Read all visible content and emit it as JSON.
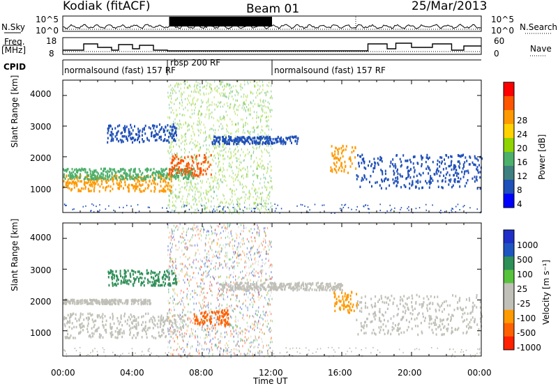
{
  "header": {
    "station": "Kodiak (fitACF)",
    "beam": "Beam 01",
    "date": "25/Mar/2013"
  },
  "top_panels": {
    "nsky_label": "N.Sky",
    "nsearch_label": "N.Search",
    "nsky_ticks": [
      "10^5",
      "10^0"
    ],
    "nsearch_ticks": [
      "10^5",
      "10^0"
    ],
    "freq_label": "Freq.",
    "freq_unit": "[MHz]",
    "freq_ticks": [
      "18",
      "8"
    ],
    "nave_label": "Nave",
    "nave_ticks": [
      "60",
      "0"
    ],
    "cpid_label": "CPID",
    "cpid_segments": [
      {
        "label": "normalsound (fast) 157 RF",
        "start_h": 0.0,
        "end_h": 6.0
      },
      {
        "label": "rbsp 200 RF",
        "start_h": 6.0,
        "end_h": 12.0
      },
      {
        "label": "normalsound (fast) 157 RF",
        "start_h": 12.0,
        "end_h": 24.0
      }
    ]
  },
  "chart_data": [
    {
      "type": "heatmap",
      "name": "power",
      "ylabel": "Slant Range [km]",
      "yticks": [
        "4000",
        "3000",
        "2000",
        "1000"
      ],
      "ytick_values": [
        4000,
        3000,
        2000,
        1000
      ],
      "ylim": [
        180,
        4500
      ],
      "xlim": [
        0,
        24
      ],
      "colorbar_label": "Power [dB]",
      "colorbar_ticks": [
        "28",
        "24",
        "20",
        "16",
        "12",
        "8",
        "4"
      ],
      "colorbar_colors": [
        "#ff0000",
        "#ff5500",
        "#ff9900",
        "#ffd200",
        "#8fd400",
        "#4cb06b",
        "#3f7f7f",
        "#1f4fb8",
        "#0000ff"
      ],
      "features": [
        {
          "kind": "band",
          "t0": 0.0,
          "t1": 6.2,
          "r0": 900,
          "r1": 1450,
          "color": "#ff9900"
        },
        {
          "kind": "band",
          "t0": 0.0,
          "t1": 7.5,
          "r0": 1300,
          "r1": 1650,
          "color": "#4cb06b"
        },
        {
          "kind": "band",
          "t0": 2.5,
          "t1": 6.5,
          "r0": 2500,
          "r1": 3100,
          "color": "#1f4fb8"
        },
        {
          "kind": "band",
          "t0": 6.0,
          "t1": 8.5,
          "r0": 1400,
          "r1": 2100,
          "color": "#ff5500"
        },
        {
          "kind": "band",
          "t0": 8.5,
          "t1": 13.5,
          "r0": 2450,
          "r1": 2700,
          "color": "#1f4fb8"
        },
        {
          "kind": "band",
          "t0": 15.3,
          "t1": 16.8,
          "r0": 1500,
          "r1": 2400,
          "color": "#ff9900"
        },
        {
          "kind": "band",
          "t0": 16.8,
          "t1": 24.0,
          "r0": 1000,
          "r1": 2100,
          "color": "#1f4fb8"
        }
      ]
    },
    {
      "type": "heatmap",
      "name": "velocity",
      "ylabel": "Slant Range [km]",
      "xlabel": "Time UT",
      "xticks": [
        "00:00",
        "04:00",
        "08:00",
        "12:00",
        "16:00",
        "20:00",
        "00:00"
      ],
      "xtick_values": [
        0,
        4,
        8,
        12,
        16,
        20,
        24
      ],
      "yticks": [
        "4000",
        "3000",
        "2000",
        "1000"
      ],
      "ytick_values": [
        4000,
        3000,
        2000,
        1000
      ],
      "ylim": [
        180,
        4500
      ],
      "xlim": [
        0,
        24
      ],
      "colorbar_label": "Velocity [m s⁻¹]",
      "colorbar_ticks": [
        "1000",
        "500",
        "100",
        "25",
        "-25",
        "-100",
        "-500",
        "-1000"
      ],
      "colorbar_colors": [
        "#1f2fc8",
        "#1f55c0",
        "#2e8f57",
        "#57c23b",
        "#c0c0b8",
        "#c0c0b8",
        "#ff9900",
        "#ff6000",
        "#ff2000"
      ],
      "features": [
        {
          "kind": "band",
          "t0": 0.0,
          "t1": 7.0,
          "r0": 800,
          "r1": 1600,
          "color": "#c0c0b8"
        },
        {
          "kind": "band",
          "t0": 0.0,
          "t1": 5.0,
          "r0": 1900,
          "r1": 2050,
          "color": "#c0c0b8"
        },
        {
          "kind": "band",
          "t0": 2.5,
          "t1": 6.5,
          "r0": 2500,
          "r1": 3000,
          "color": "#2e8f57"
        },
        {
          "kind": "band",
          "t0": 7.5,
          "t1": 9.5,
          "r0": 1200,
          "r1": 1700,
          "color": "#ff6000"
        },
        {
          "kind": "band",
          "t0": 9.0,
          "t1": 16.0,
          "r0": 2350,
          "r1": 2600,
          "color": "#c0c0b8"
        },
        {
          "kind": "band",
          "t0": 15.5,
          "t1": 16.9,
          "r0": 1600,
          "r1": 2300,
          "color": "#ff9900"
        },
        {
          "kind": "band",
          "t0": 16.8,
          "t1": 24.0,
          "r0": 900,
          "r1": 2200,
          "color": "#c0c0b8"
        }
      ]
    }
  ]
}
